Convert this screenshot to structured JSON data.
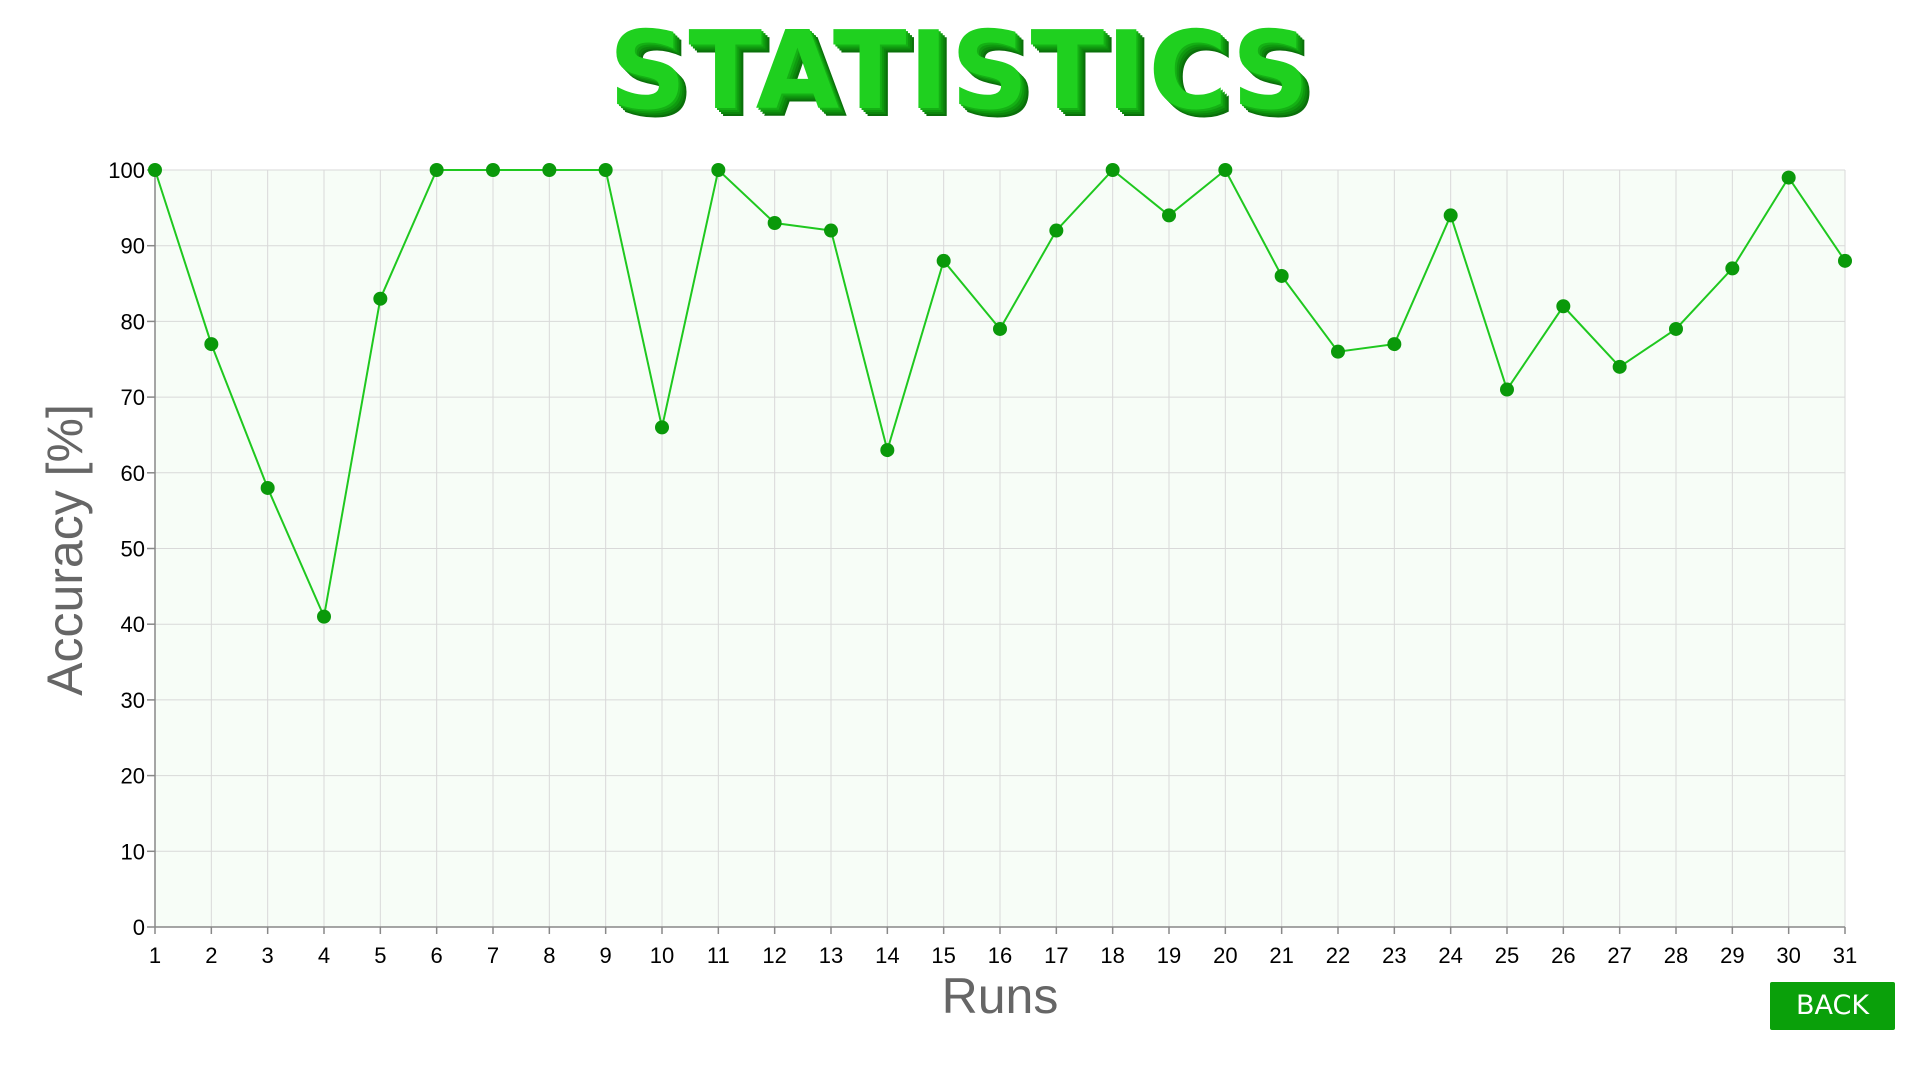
{
  "title": "STATISTICS",
  "back_button": {
    "label": "BACK"
  },
  "colors": {
    "line": "#1fc81f",
    "marker": "#0a990a",
    "plot_bg": "#f7fdf7",
    "grid": "#d9d9d9",
    "axis_title": "#666666",
    "tick_label": "#000000",
    "button": "#0aa00a"
  },
  "chart_data": {
    "type": "line",
    "xlabel": "Runs",
    "ylabel": "Accuracy [%]",
    "ylim": [
      0,
      100
    ],
    "yticks": [
      0,
      10,
      20,
      30,
      40,
      50,
      60,
      70,
      80,
      90,
      100
    ],
    "x": [
      1,
      2,
      3,
      4,
      5,
      6,
      7,
      8,
      9,
      10,
      11,
      12,
      13,
      14,
      15,
      16,
      17,
      18,
      19,
      20,
      21,
      22,
      23,
      24,
      25,
      26,
      27,
      28,
      29,
      30,
      31
    ],
    "values": [
      100,
      77,
      58,
      41,
      83,
      100,
      100,
      100,
      100,
      66,
      100,
      93,
      92,
      63,
      88,
      79,
      92,
      100,
      94,
      100,
      86,
      76,
      77,
      94,
      71,
      82,
      74,
      79,
      87,
      99,
      88
    ],
    "grid": true,
    "legend": "none"
  }
}
